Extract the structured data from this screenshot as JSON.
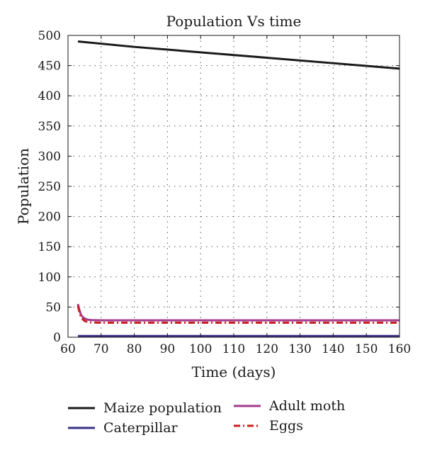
{
  "chart_data": {
    "type": "line",
    "title": "Population Vs time",
    "xlabel": "Time (days)",
    "ylabel": "Population",
    "xlim": [
      60,
      160
    ],
    "ylim": [
      0,
      500
    ],
    "xticks": [
      60,
      70,
      80,
      90,
      100,
      110,
      120,
      130,
      140,
      150,
      160
    ],
    "yticks": [
      0,
      50,
      100,
      150,
      200,
      250,
      300,
      350,
      400,
      450,
      500
    ],
    "grid": true,
    "legend_position": "bottom",
    "series": [
      {
        "name": "Maize population",
        "color": "#1a1a1a",
        "style": "solid",
        "x": [
          63,
          80,
          100,
          120,
          140,
          160
        ],
        "y": [
          490,
          481,
          472,
          463,
          454,
          445
        ]
      },
      {
        "name": "Caterpillar",
        "color": "#3a3084",
        "style": "solid",
        "x": [
          63,
          80,
          100,
          120,
          140,
          160
        ],
        "y": [
          2,
          2,
          2,
          2,
          2,
          2
        ]
      },
      {
        "name": "Adult moth",
        "color": "#a33a8c",
        "style": "solid",
        "x": [
          63,
          63.5,
          64,
          65,
          66,
          67,
          70,
          80,
          100,
          120,
          140,
          160
        ],
        "y": [
          55,
          44,
          36,
          31,
          29,
          28.5,
          28,
          28,
          28,
          28,
          28,
          28
        ]
      },
      {
        "name": "Eggs",
        "color": "#cc1f1f",
        "style": "dashdot",
        "x": [
          63,
          63.5,
          64,
          65,
          66,
          67,
          70,
          80,
          100,
          120,
          140,
          160
        ],
        "y": [
          52,
          40,
          32,
          27,
          25,
          24.5,
          24,
          24,
          24,
          24,
          24,
          24
        ]
      }
    ]
  }
}
